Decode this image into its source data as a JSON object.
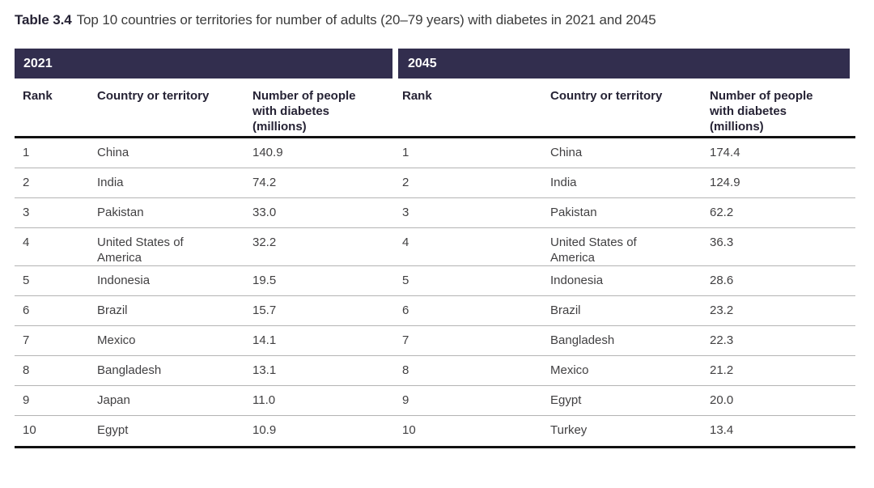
{
  "page": {
    "title_label": "Table 3.4",
    "title_text": "Top 10 countries or territories for number of adults (20–79 years) with diabetes in 2021 and 2045"
  },
  "colors": {
    "band_background": "#322e4e",
    "band_text": "#ffffff",
    "heading_text": "#262335",
    "body_text": "#414042",
    "row_separator": "#b4b4b4",
    "thick_rule": "#111111"
  },
  "tables": [
    {
      "year": "2021",
      "headers": {
        "rank": "Rank",
        "country": "Country or territory",
        "value": "Number of people with diabetes (millions)"
      },
      "rows": [
        {
          "rank": "1",
          "country": "China",
          "value": "140.9"
        },
        {
          "rank": "2",
          "country": "India",
          "value": "74.2"
        },
        {
          "rank": "3",
          "country": "Pakistan",
          "value": "33.0"
        },
        {
          "rank": "4",
          "country": "United States of America",
          "value": "32.2"
        },
        {
          "rank": "5",
          "country": "Indonesia",
          "value": "19.5"
        },
        {
          "rank": "6",
          "country": "Brazil",
          "value": "15.7"
        },
        {
          "rank": "7",
          "country": "Mexico",
          "value": "14.1"
        },
        {
          "rank": "8",
          "country": "Bangladesh",
          "value": "13.1"
        },
        {
          "rank": "9",
          "country": "Japan",
          "value": "11.0"
        },
        {
          "rank": "10",
          "country": "Egypt",
          "value": "10.9"
        }
      ]
    },
    {
      "year": "2045",
      "headers": {
        "rank": "Rank",
        "country": "Country or territory",
        "value": "Number of people with diabetes (millions)"
      },
      "rows": [
        {
          "rank": "1",
          "country": "China",
          "value": "174.4"
        },
        {
          "rank": "2",
          "country": "India",
          "value": "124.9"
        },
        {
          "rank": "3",
          "country": "Pakistan",
          "value": "62.2"
        },
        {
          "rank": "4",
          "country": "United States of America",
          "value": "36.3"
        },
        {
          "rank": "5",
          "country": "Indonesia",
          "value": "28.6"
        },
        {
          "rank": "6",
          "country": "Brazil",
          "value": "23.2"
        },
        {
          "rank": "7",
          "country": "Bangladesh",
          "value": "22.3"
        },
        {
          "rank": "8",
          "country": "Mexico",
          "value": "21.2"
        },
        {
          "rank": "9",
          "country": "Egypt",
          "value": "20.0"
        },
        {
          "rank": "10",
          "country": "Turkey",
          "value": "13.4"
        }
      ]
    }
  ]
}
